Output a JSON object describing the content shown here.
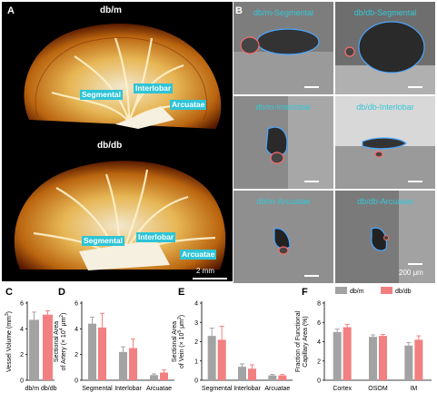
{
  "figure": {
    "panels": {
      "A": {
        "letter": "A",
        "top_title": "db/m",
        "bottom_title": "db/db",
        "labels_top": [
          "Segmental",
          "Interlobar",
          "Arcuatae"
        ],
        "labels_bottom": [
          "Segmental",
          "Interlobar",
          "Arcuatae"
        ],
        "scale": "2 mm"
      },
      "B": {
        "letter": "B",
        "cells": [
          {
            "title": "db/m-Segmental"
          },
          {
            "title": "db/db-Segmental"
          },
          {
            "title": "db/m-Interlobar"
          },
          {
            "title": "db/db-Interlobar"
          },
          {
            "title": "db/m-Arcuatae"
          },
          {
            "title": "db/db-Arcuatae"
          }
        ],
        "scale": "200 μm"
      },
      "C": {
        "letter": "C"
      },
      "D": {
        "letter": "D"
      },
      "E": {
        "letter": "E"
      },
      "F": {
        "letter": "F"
      }
    },
    "colors": {
      "db_m": "#a3a3a3",
      "db_db": "#f28080",
      "cyan": "#35c7d8"
    }
  },
  "chart_data": [
    {
      "panel": "C",
      "type": "bar",
      "categories": [
        "db/m",
        "db/db"
      ],
      "values": [
        4.7,
        5.1
      ],
      "errors": [
        0.6,
        0.3
      ],
      "ylabel_main": "Vessel Volume (mm",
      "ylabel_sup": "3",
      "ylabel_end": ")",
      "ylim": [
        0,
        6
      ],
      "yticks": [
        "0",
        "2",
        "4",
        "6"
      ]
    },
    {
      "panel": "D",
      "type": "bar",
      "categories": [
        "Segmental",
        "Interlobar",
        "Arcuatae"
      ],
      "series": [
        {
          "name": "db/m",
          "values": [
            4.4,
            2.2,
            0.4
          ],
          "errors": [
            0.5,
            0.4,
            0.1
          ]
        },
        {
          "name": "db/db",
          "values": [
            4.1,
            2.5,
            0.6
          ],
          "errors": [
            1.1,
            0.7,
            0.2
          ]
        }
      ],
      "ylabel_line1": "Sectional Area",
      "ylabel_line2_main": "of Artery (× 10",
      "ylabel_line2_sup": "4",
      "ylabel_line2_mid": " μm",
      "ylabel_line2_sup2": "2",
      "ylabel_line2_end": ")",
      "ylim": [
        0,
        6
      ],
      "yticks": [
        "0",
        "2",
        "4",
        "6"
      ]
    },
    {
      "panel": "E",
      "type": "bar",
      "categories": [
        "Segmental",
        "Interlobar",
        "Arcuatae"
      ],
      "series": [
        {
          "name": "db/m",
          "values": [
            2.3,
            0.7,
            0.25
          ],
          "errors": [
            0.4,
            0.15,
            0.05
          ]
        },
        {
          "name": "db/db",
          "values": [
            2.1,
            0.6,
            0.25
          ],
          "errors": [
            0.7,
            0.2,
            0.05
          ]
        }
      ],
      "ylabel_line1": "Sectional Area",
      "ylabel_line2_main": "of Vein (× 10",
      "ylabel_line2_sup": "5",
      "ylabel_line2_mid": " μm",
      "ylabel_line2_sup2": "2",
      "ylabel_line2_end": ")",
      "ylim": [
        0,
        4
      ],
      "yticks": [
        "0",
        "1",
        "2",
        "3",
        "4"
      ]
    },
    {
      "panel": "F",
      "type": "bar",
      "categories": [
        "Cortex",
        "OSOM",
        "IM"
      ],
      "series": [
        {
          "name": "db/m",
          "values": [
            5.0,
            4.5,
            3.6
          ],
          "errors": [
            0.3,
            0.2,
            0.3
          ]
        },
        {
          "name": "db/db",
          "values": [
            5.5,
            4.6,
            4.2
          ],
          "errors": [
            0.3,
            0.15,
            0.4
          ]
        }
      ],
      "legend": [
        "db/m",
        "db/db"
      ],
      "ylabel_line1": "Fraction of Functional",
      "ylabel_line2": "Capillary Area (%)",
      "ylim": [
        0,
        8
      ],
      "yticks": [
        "0",
        "2",
        "4",
        "6",
        "8"
      ]
    }
  ]
}
